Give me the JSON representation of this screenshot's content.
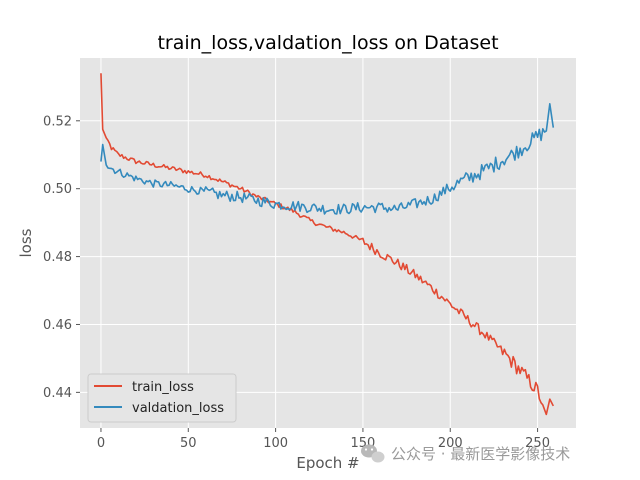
{
  "chart_data": {
    "type": "line",
    "title": "train_loss,valdation_loss on Dataset",
    "xlabel": "Epoch #",
    "ylabel": "loss",
    "xlim": [
      -12,
      272
    ],
    "ylim": [
      0.4295,
      0.5385
    ],
    "xticks": [
      0,
      50,
      100,
      150,
      200,
      250
    ],
    "yticks": [
      0.44,
      0.46,
      0.48,
      0.5,
      0.52
    ],
    "ytick_labels": [
      "0.44",
      "0.46",
      "0.48",
      "0.50",
      "0.52"
    ],
    "grid": true,
    "legend_position": "lower-left",
    "series": [
      {
        "name": "train_loss",
        "color": "#E24A33",
        "x": [
          0,
          1,
          3,
          6,
          10,
          15,
          20,
          30,
          40,
          50,
          60,
          70,
          80,
          90,
          100,
          110,
          120,
          130,
          140,
          150,
          160,
          170,
          180,
          190,
          200,
          210,
          220,
          230,
          240,
          250,
          255,
          257,
          259
        ],
        "values": [
          0.534,
          0.5175,
          0.515,
          0.512,
          0.51,
          0.509,
          0.508,
          0.507,
          0.506,
          0.505,
          0.504,
          0.502,
          0.5,
          0.4975,
          0.4955,
          0.4935,
          0.4905,
          0.4885,
          0.487,
          0.4845,
          0.481,
          0.478,
          0.4745,
          0.4705,
          0.466,
          0.4615,
          0.457,
          0.452,
          0.4465,
          0.4405,
          0.4335,
          0.438,
          0.436
        ]
      },
      {
        "name": "valdation_loss",
        "color": "#348ABD",
        "x": [
          0,
          1,
          3,
          6,
          10,
          15,
          20,
          30,
          40,
          50,
          60,
          70,
          80,
          90,
          100,
          110,
          120,
          130,
          140,
          150,
          160,
          170,
          180,
          190,
          200,
          210,
          220,
          230,
          240,
          250,
          255,
          257,
          259
        ],
        "values": [
          0.508,
          0.513,
          0.507,
          0.506,
          0.505,
          0.504,
          0.503,
          0.5015,
          0.501,
          0.5,
          0.499,
          0.498,
          0.4975,
          0.4965,
          0.4955,
          0.495,
          0.4945,
          0.494,
          0.494,
          0.4945,
          0.4945,
          0.494,
          0.4955,
          0.497,
          0.5005,
          0.503,
          0.5055,
          0.5085,
          0.5115,
          0.5155,
          0.517,
          0.525,
          0.518
        ]
      }
    ]
  },
  "watermark": {
    "text": "公众号 · 最新医学影像技术",
    "icon": "wechat-icon"
  }
}
